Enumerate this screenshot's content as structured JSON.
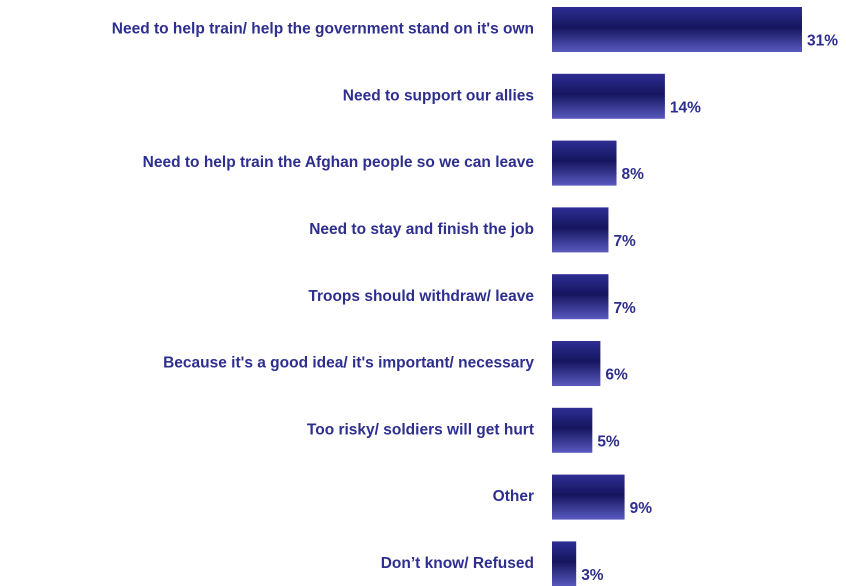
{
  "chart_data": {
    "type": "bar",
    "orientation": "horizontal",
    "categories": [
      "Need to help train/ help the government stand on it's own",
      "Need to support our allies",
      "Need to help train the Afghan people so we can leave",
      "Need to stay and finish the job",
      "Troops should withdraw/ leave",
      "Because it's a good idea/ it's important/ necessary",
      "Too risky/ soldiers will get hurt",
      "Other",
      "Don’t know/ Refused"
    ],
    "values": [
      31,
      14,
      8,
      7,
      7,
      6,
      5,
      9,
      3
    ],
    "value_labels": [
      "31%",
      "14%",
      "8%",
      "7%",
      "7%",
      "6%",
      "5%",
      "9%",
      "3%"
    ],
    "unit": "%",
    "xlim": [
      0,
      31
    ],
    "grid": false,
    "legend": "none"
  },
  "colors": {
    "text": "#2e2e8f",
    "bar_dark": "#15155e",
    "bar_mid": "#2e2e94",
    "bar_light": "#5a5ac0"
  }
}
